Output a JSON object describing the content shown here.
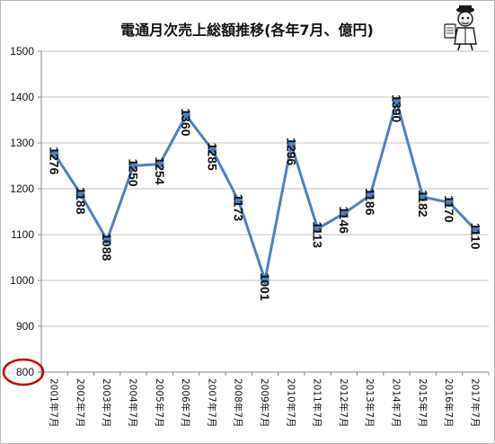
{
  "chart_data": {
    "type": "line",
    "title": "電通月次売上総額推移(各年7月、億円)",
    "categories": [
      "2001年7月",
      "2002年7月",
      "2003年7月",
      "2004年7月",
      "2005年7月",
      "2006年7月",
      "2007年7月",
      "2008年7月",
      "2009年7月",
      "2010年7月",
      "2011年7月",
      "2012年7月",
      "2013年7月",
      "2014年7月",
      "2015年7月",
      "2016年7月",
      "2017年7月"
    ],
    "series": [
      {
        "values": [
          1276,
          1188,
          1088,
          1250,
          1254,
          1360,
          1285,
          1173,
          1001,
          1296,
          1113,
          1146,
          1186,
          1390,
          1182,
          1170,
          1110
        ]
      }
    ],
    "data_labels": [
      "1276",
      "1188",
      "1088",
      "1250",
      "1254",
      "1360",
      "1285",
      "1173",
      "1001",
      "1296",
      "1113",
      "1146",
      "1186",
      "1390",
      "1182",
      "1170",
      "1110"
    ],
    "yticks": [
      "800",
      "900",
      "1000",
      "1100",
      "1200",
      "1300",
      "1400",
      "1500"
    ],
    "ylim": [
      800,
      1500
    ],
    "y_step": 100,
    "grid": true,
    "highlight": "800",
    "colors": {
      "line": "#4f81bd",
      "grid": "#c0c0c0",
      "axis": "#868686",
      "highlight": "#cc0000"
    }
  },
  "decoration": {
    "icon": "mascot-icon"
  }
}
